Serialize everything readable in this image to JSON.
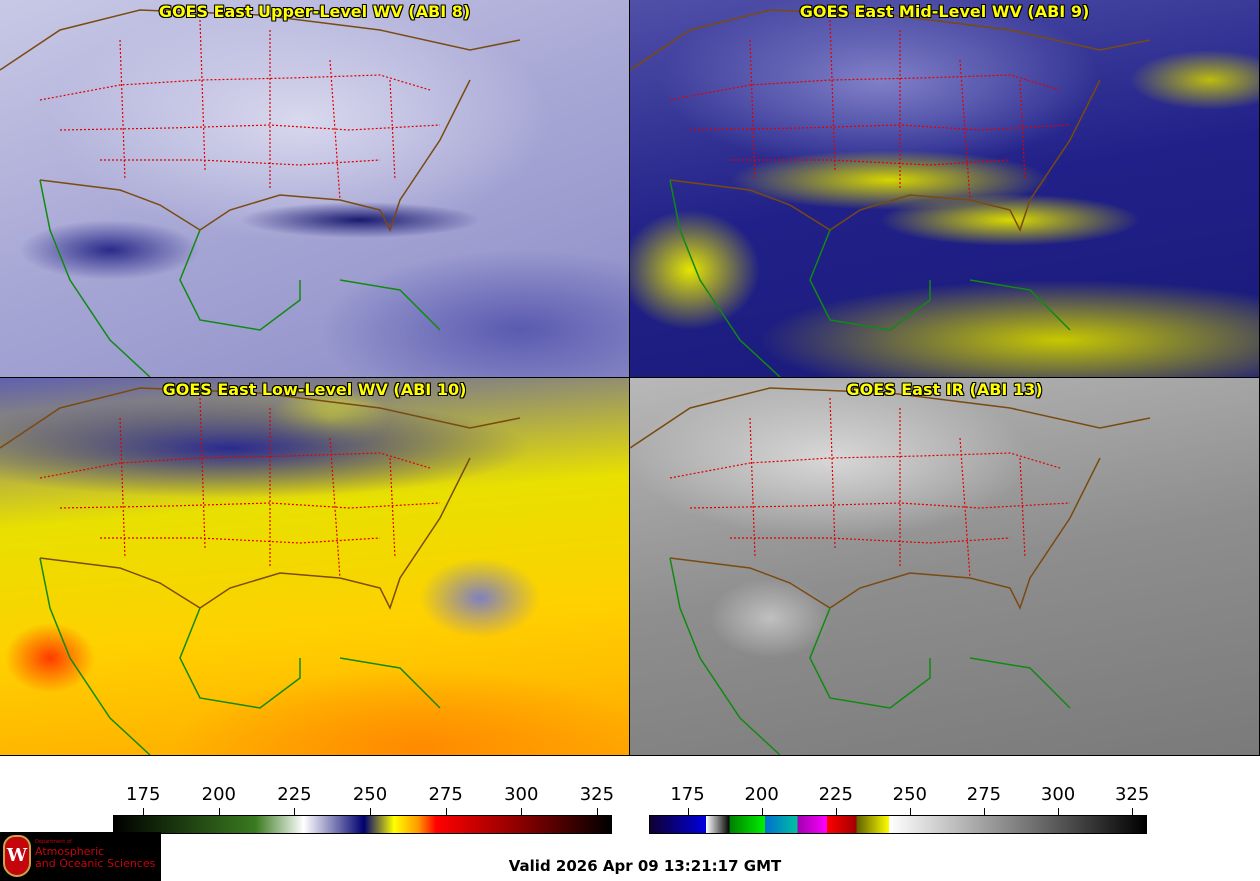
{
  "panels": [
    {
      "id": "p1",
      "title": "GOES East Upper-Level WV (ABI 8)"
    },
    {
      "id": "p2",
      "title": "GOES East Mid-Level WV (ABI 9)"
    },
    {
      "id": "p3",
      "title": "GOES East Low-Level WV (ABI 10)"
    },
    {
      "id": "p4",
      "title": "GOES East IR (ABI 13)"
    }
  ],
  "colorbars": [
    {
      "name": "wv-colorbar",
      "range": [
        165,
        330
      ],
      "ticks": [
        "175",
        "200",
        "225",
        "250",
        "275",
        "300",
        "325"
      ],
      "stops": [
        [
          165,
          "#000000"
        ],
        [
          212,
          "#3a7a20"
        ],
        [
          228,
          "#ffffff"
        ],
        [
          248,
          "#000070"
        ],
        [
          258,
          "#ffff00"
        ],
        [
          266,
          "#ff9900"
        ],
        [
          272,
          "#ff0000"
        ],
        [
          300,
          "#8a0000"
        ],
        [
          330,
          "#000000"
        ]
      ]
    },
    {
      "name": "ir-colorbar",
      "range": [
        162,
        330
      ],
      "ticks": [
        "175",
        "200",
        "225",
        "250",
        "275",
        "300",
        "325"
      ],
      "segments": [
        [
          162,
          181,
          "#100030",
          "#0000e0"
        ],
        [
          181,
          189,
          "#ffffff",
          "#000000"
        ],
        [
          189,
          201,
          "#008000",
          "#00f000"
        ],
        [
          201,
          212,
          "#0070d0",
          "#00c0a0"
        ],
        [
          212,
          222,
          "#a000b0",
          "#ff00ff"
        ],
        [
          222,
          232,
          "#ff0000",
          "#a00000"
        ],
        [
          232,
          243,
          "#606000",
          "#ffff00"
        ],
        [
          243,
          330,
          "#ffffff",
          "#000000"
        ]
      ]
    }
  ],
  "logo": {
    "line1": "Department of",
    "line2": "Atmospheric",
    "line3": "and Oceanic Sciences",
    "crest": "W"
  },
  "valid_time": "Valid 2026 Apr 09 13:21:17 GMT"
}
